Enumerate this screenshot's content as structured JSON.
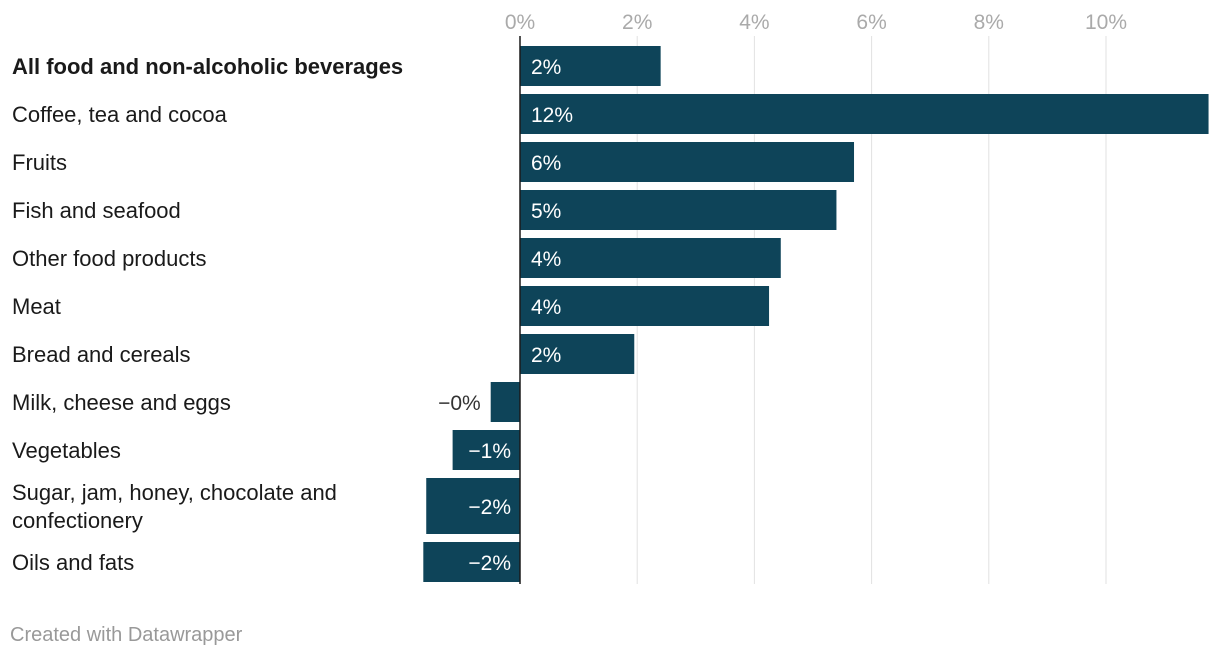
{
  "chart_data": {
    "type": "bar",
    "orientation": "horizontal",
    "categories": [
      "All food and non-alcoholic beverages",
      "Coffee, tea and cocoa",
      "Fruits",
      "Fish and seafood",
      "Other food products",
      "Meat",
      "Bread and cereals",
      "Milk, cheese and eggs",
      "Vegetables",
      "Sugar, jam, honey, chocolate and confectionery",
      "Oils and fats"
    ],
    "category_lines": [
      [
        "All food and non-alcoholic beverages"
      ],
      [
        "Coffee, tea and cocoa"
      ],
      [
        "Fruits"
      ],
      [
        "Fish and seafood"
      ],
      [
        "Other food products"
      ],
      [
        "Meat"
      ],
      [
        "Bread and cereals"
      ],
      [
        "Milk, cheese and eggs"
      ],
      [
        "Vegetables"
      ],
      [
        "Sugar, jam, honey, chocolate and",
        "confectionery"
      ],
      [
        "Oils and fats"
      ]
    ],
    "highlight": [
      true,
      false,
      false,
      false,
      false,
      false,
      false,
      false,
      false,
      false,
      false
    ],
    "values": [
      2.4,
      11.75,
      5.7,
      5.4,
      4.45,
      4.25,
      1.95,
      -0.5,
      -1.15,
      -1.6,
      -1.65
    ],
    "value_labels": [
      "2%",
      "12%",
      "6%",
      "5%",
      "4%",
      "4%",
      "2%",
      "−0%",
      "−1%",
      "−2%",
      "−2%"
    ],
    "x_ticks": [
      0,
      2,
      4,
      6,
      8,
      10
    ],
    "x_tick_labels": [
      "0%",
      "2%",
      "4%",
      "6%",
      "8%",
      "10%"
    ],
    "xlim": [
      -1.65,
      11.75
    ],
    "title": "",
    "xlabel": "",
    "ylabel": "",
    "grid": true,
    "bar_color": "#0e4459",
    "grid_color": "#e2e2e2"
  },
  "footer": {
    "credit": "Created with Datawrapper"
  }
}
